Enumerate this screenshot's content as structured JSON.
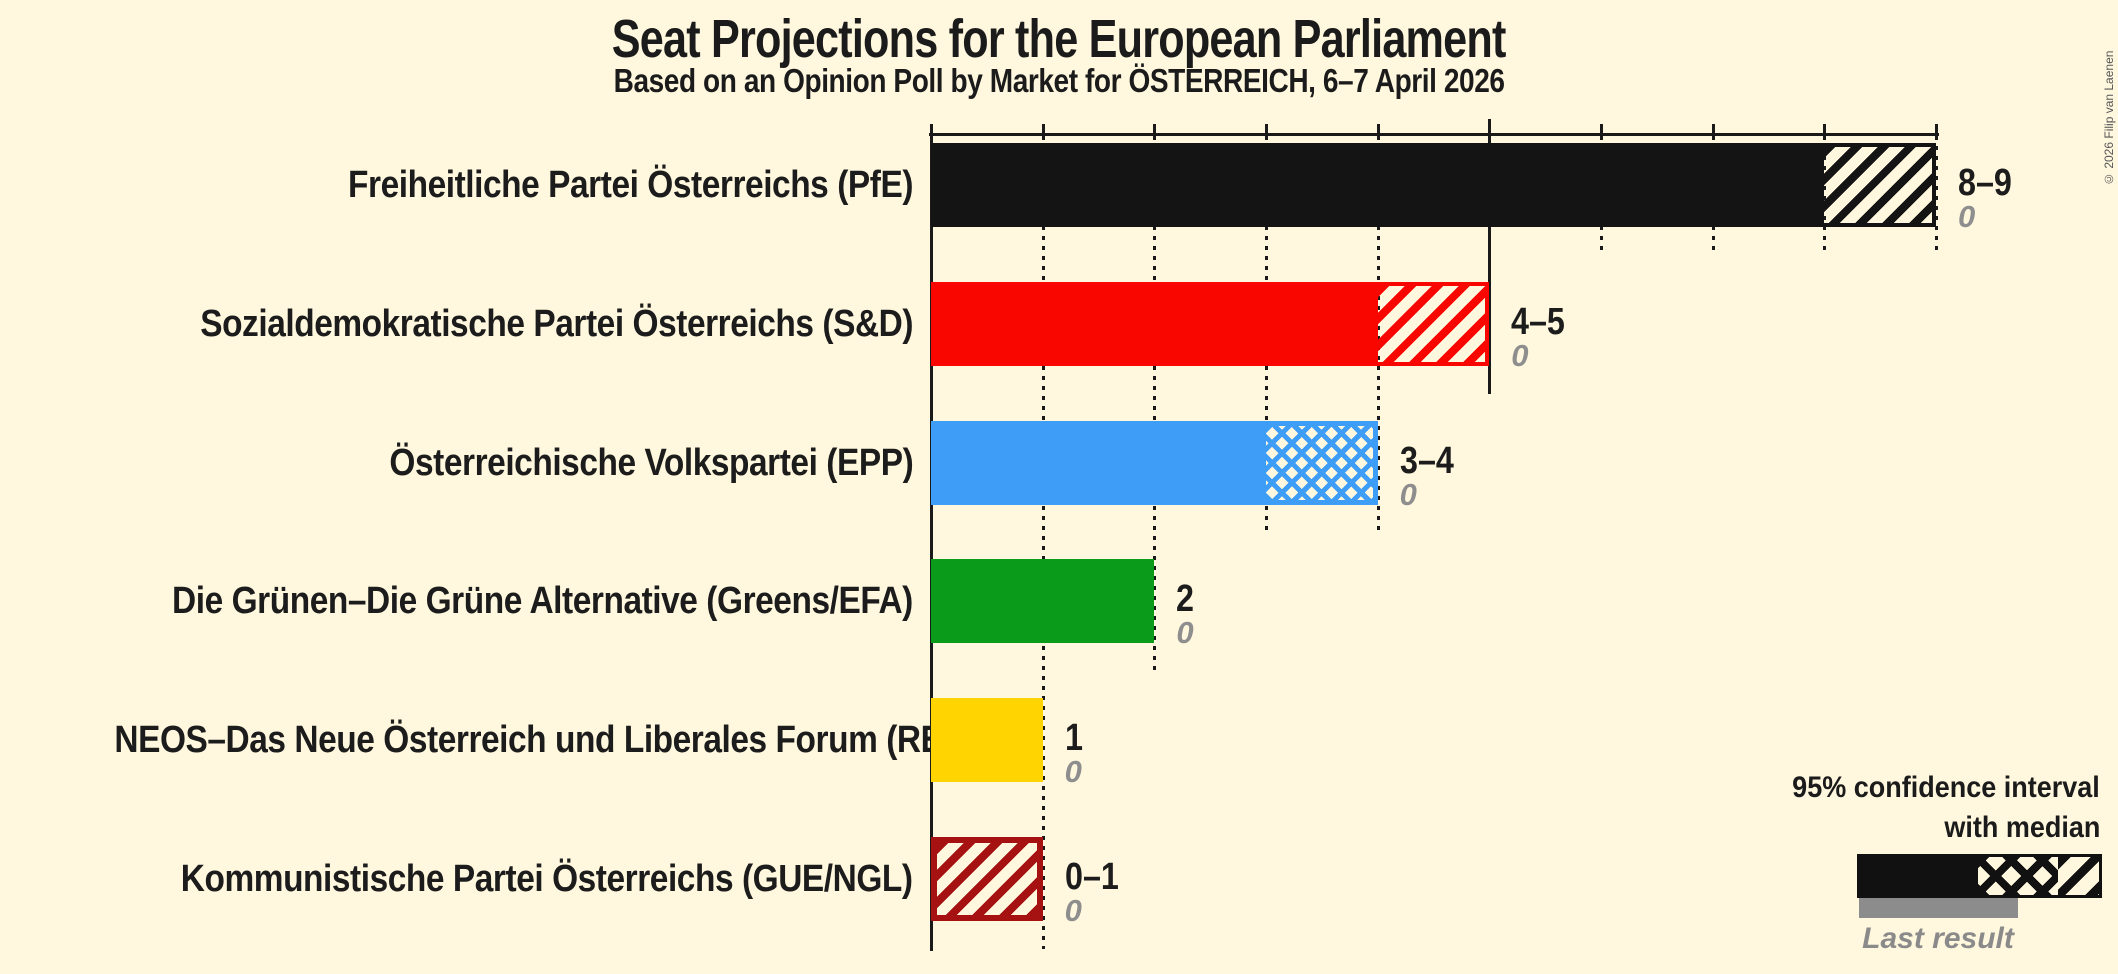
{
  "page": {
    "title": "Seat Projections for the European Parliament",
    "subtitle": "Based on an Opinion Poll by Market for ÖSTERREICH, 6–7 April 2026",
    "copyright": "© 2026 Filip van Laenen"
  },
  "legend": {
    "ci_line1": "95% confidence interval",
    "ci_line2": "with median",
    "last_result": "Last result"
  },
  "colors": {
    "background": "#FFF8DE",
    "axis": "#1A1A1A",
    "value_label": "#1C1C1C",
    "muted_label": "#8E8E8E",
    "last_result_bar": "#8C8C8C"
  },
  "chart_data": {
    "type": "bar",
    "orientation": "horizontal",
    "unit": "seats",
    "title": "Seat Projections for the European Parliament",
    "x_axis": {
      "min": 0,
      "max": 9,
      "tick_interval": 1,
      "major_tick_interval": 5,
      "minor_gridlines": "dotted",
      "major_gridlines": "solid"
    },
    "note": "solid = 0 to CI low, crosshatch = CI low to median, diagonal hatch = median to CI high; gray sub-bar = last result (all 0)",
    "parties": [
      {
        "name": "Freiheitliche Partei Österreichs (PfE)",
        "ci_low": 8,
        "median": 8,
        "ci_high": 9,
        "range_label": "8–9",
        "last_result": 0,
        "last_result_label": "0",
        "color": "#141414"
      },
      {
        "name": "Sozialdemokratische Partei Österreichs (S&D)",
        "ci_low": 4,
        "median": 4,
        "ci_high": 5,
        "range_label": "4–5",
        "last_result": 0,
        "last_result_label": "0",
        "color": "#F90600"
      },
      {
        "name": "Österreichische Volkspartei (EPP)",
        "ci_low": 3,
        "median": 4,
        "ci_high": 4,
        "range_label": "3–4",
        "last_result": 0,
        "last_result_label": "0",
        "color": "#3E9DF6"
      },
      {
        "name": "Die Grünen–Die Grüne Alternative (Greens/EFA)",
        "ci_low": 2,
        "median": 2,
        "ci_high": 2,
        "range_label": "2",
        "last_result": 0,
        "last_result_label": "0",
        "color": "#0A9B1A"
      },
      {
        "name": "NEOS–Das Neue Österreich und Liberales Forum (RE)",
        "ci_low": 1,
        "median": 1,
        "ci_high": 1,
        "range_label": "1",
        "last_result": 0,
        "last_result_label": "0",
        "color": "#FFD400"
      },
      {
        "name": "Kommunistische Partei Österreichs (GUE/NGL)",
        "ci_low": 0,
        "median": 0,
        "ci_high": 1,
        "range_label": "0–1",
        "last_result": 0,
        "last_result_label": "0",
        "color": "#A61111"
      }
    ]
  }
}
